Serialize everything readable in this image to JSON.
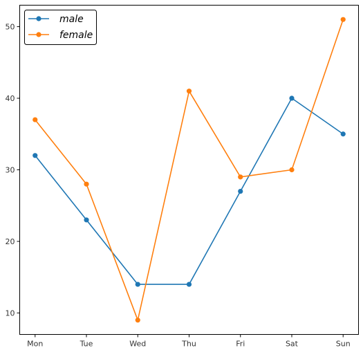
{
  "chart_data": {
    "type": "line",
    "categories": [
      "Mon",
      "Tue",
      "Wed",
      "Thu",
      "Fri",
      "Sat",
      "Sun"
    ],
    "series": [
      {
        "name": "male",
        "values": [
          32,
          23,
          14,
          14,
          27,
          40,
          35
        ],
        "color": "#1f77b4"
      },
      {
        "name": "female",
        "values": [
          37,
          28,
          9,
          41,
          29,
          30,
          51
        ],
        "color": "#ff7f0e"
      }
    ],
    "y_ticks": [
      10,
      20,
      30,
      40,
      50
    ],
    "ylim": [
      7,
      53
    ],
    "title": "",
    "xlabel": "",
    "ylabel": "",
    "legend": {
      "placement": "top-left"
    },
    "grid": false,
    "markers": true
  }
}
